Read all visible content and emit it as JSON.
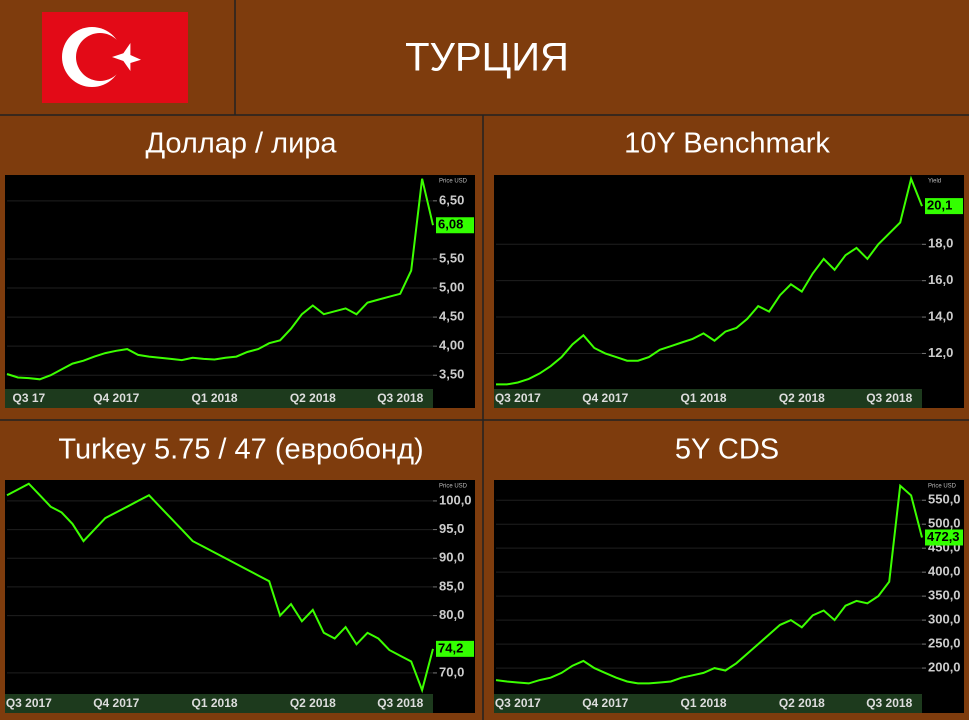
{
  "title": "ТУРЦИЯ",
  "chart_data": [
    {
      "type": "line",
      "title": "Доллар / лира",
      "ylabel": "Price USD",
      "color": "#3cff00",
      "grid": true,
      "categories": [
        null,
        null,
        "Q3 17",
        null,
        null,
        null,
        null,
        null,
        null,
        null,
        "Q4 2017",
        null,
        null,
        null,
        null,
        null,
        null,
        null,
        null,
        "Q1 2018",
        null,
        null,
        null,
        null,
        null,
        null,
        null,
        null,
        "Q2 2018",
        null,
        null,
        null,
        null,
        null,
        null,
        null,
        "Q3 2018",
        null,
        null,
        null
      ],
      "values": [
        3.52,
        3.46,
        3.45,
        3.43,
        3.5,
        3.6,
        3.7,
        3.75,
        3.82,
        3.88,
        3.92,
        3.95,
        3.85,
        3.82,
        3.8,
        3.78,
        3.76,
        3.8,
        3.78,
        3.77,
        3.8,
        3.82,
        3.9,
        3.95,
        4.05,
        4.1,
        4.3,
        4.55,
        4.7,
        4.55,
        4.6,
        4.65,
        4.55,
        4.75,
        4.8,
        4.85,
        4.9,
        5.3,
        6.88,
        6.08
      ],
      "ylim": [
        3.28,
        6.91
      ],
      "yticks": [
        {
          "value": 3.5,
          "label": "3,50"
        },
        {
          "value": 4.0,
          "label": "4,00"
        },
        {
          "value": 4.5,
          "label": "4,50"
        },
        {
          "value": 5.0,
          "label": "5,00"
        },
        {
          "value": 5.5,
          "label": "5,50"
        },
        {
          "value": 6.5,
          "label": "6,50"
        }
      ],
      "current": {
        "value": 6.08,
        "label": "6,08"
      }
    },
    {
      "type": "line",
      "title": "10Y Benchmark",
      "ylabel": "Yield",
      "color": "#3cff00",
      "grid": true,
      "categories": [
        null,
        null,
        "Q3 2017",
        null,
        null,
        null,
        null,
        null,
        null,
        null,
        "Q4 2017",
        null,
        null,
        null,
        null,
        null,
        null,
        null,
        null,
        "Q1 2018",
        null,
        null,
        null,
        null,
        null,
        null,
        null,
        null,
        "Q2 2018",
        null,
        null,
        null,
        null,
        null,
        null,
        null,
        "Q3 2018",
        null,
        null,
        null
      ],
      "values": [
        10.3,
        10.3,
        10.4,
        10.6,
        10.9,
        11.3,
        11.8,
        12.5,
        13.0,
        12.3,
        12.0,
        11.8,
        11.6,
        11.6,
        11.8,
        12.2,
        12.4,
        12.6,
        12.8,
        13.1,
        12.7,
        13.2,
        13.4,
        13.9,
        14.6,
        14.3,
        15.2,
        15.8,
        15.4,
        16.4,
        17.2,
        16.6,
        17.4,
        17.8,
        17.2,
        18.0,
        18.6,
        19.2,
        21.6,
        20.1
      ],
      "ylim": [
        10.1,
        21.7
      ],
      "yticks": [
        {
          "value": 12,
          "label": "12,0"
        },
        {
          "value": 14,
          "label": "14,0"
        },
        {
          "value": 16,
          "label": "16,0"
        },
        {
          "value": 18,
          "label": "18,0"
        }
      ],
      "current": {
        "value": 20.1,
        "label": "20,1"
      }
    },
    {
      "type": "line",
      "title": "Turkey 5.75 / 47 (евробонд)",
      "ylabel": "Price USD",
      "color": "#3cff00",
      "grid": true,
      "categories": [
        null,
        null,
        "Q3 2017",
        null,
        null,
        null,
        null,
        null,
        null,
        null,
        "Q4 2017",
        null,
        null,
        null,
        null,
        null,
        null,
        null,
        null,
        "Q1 2018",
        null,
        null,
        null,
        null,
        null,
        null,
        null,
        null,
        "Q2 2018",
        null,
        null,
        null,
        null,
        null,
        null,
        null,
        "Q3 2018",
        null,
        null,
        null
      ],
      "values": [
        101,
        102,
        103,
        101,
        99,
        98,
        96,
        93,
        95,
        97,
        98,
        99,
        100,
        101,
        99,
        97,
        95,
        93,
        92,
        91,
        90,
        89,
        88,
        87,
        86,
        80,
        82,
        79,
        81,
        77,
        76,
        78,
        75,
        77,
        76,
        74,
        73,
        72,
        67,
        74.2
      ],
      "ylim": [
        66.5,
        103.3
      ],
      "yticks": [
        {
          "value": 70,
          "label": "70,0"
        },
        {
          "value": 80,
          "label": "80,0"
        },
        {
          "value": 85,
          "label": "85,0"
        },
        {
          "value": 90,
          "label": "90,0"
        },
        {
          "value": 95,
          "label": "95,0"
        },
        {
          "value": 100,
          "label": "100,0"
        }
      ],
      "current": {
        "value": 74.2,
        "label": "74,2"
      }
    },
    {
      "type": "line",
      "title": "5Y CDS",
      "ylabel": "Price USD",
      "color": "#3cff00",
      "grid": true,
      "categories": [
        null,
        null,
        "Q3 2017",
        null,
        null,
        null,
        null,
        null,
        null,
        null,
        "Q4 2017",
        null,
        null,
        null,
        null,
        null,
        null,
        null,
        null,
        "Q1 2018",
        null,
        null,
        null,
        null,
        null,
        null,
        null,
        null,
        "Q2 2018",
        null,
        null,
        null,
        null,
        null,
        null,
        null,
        "Q3 2018",
        null,
        null,
        null
      ],
      "values": [
        175,
        172,
        170,
        168,
        175,
        180,
        190,
        205,
        215,
        200,
        190,
        180,
        172,
        168,
        168,
        170,
        172,
        180,
        185,
        190,
        200,
        195,
        210,
        230,
        250,
        270,
        290,
        300,
        285,
        310,
        320,
        300,
        330,
        340,
        335,
        350,
        380,
        580,
        560,
        472.3
      ],
      "ylim": [
        148,
        588
      ],
      "yticks": [
        {
          "value": 200,
          "label": "200,0"
        },
        {
          "value": 250,
          "label": "250,0"
        },
        {
          "value": 300,
          "label": "300,0"
        },
        {
          "value": 350,
          "label": "350,0"
        },
        {
          "value": 400,
          "label": "400,0"
        },
        {
          "value": 450,
          "label": "450,0"
        },
        {
          "value": 500,
          "label": "500,0"
        },
        {
          "value": 550,
          "label": "550,0"
        }
      ],
      "current": {
        "value": 472.3,
        "label": "472,3"
      }
    }
  ]
}
